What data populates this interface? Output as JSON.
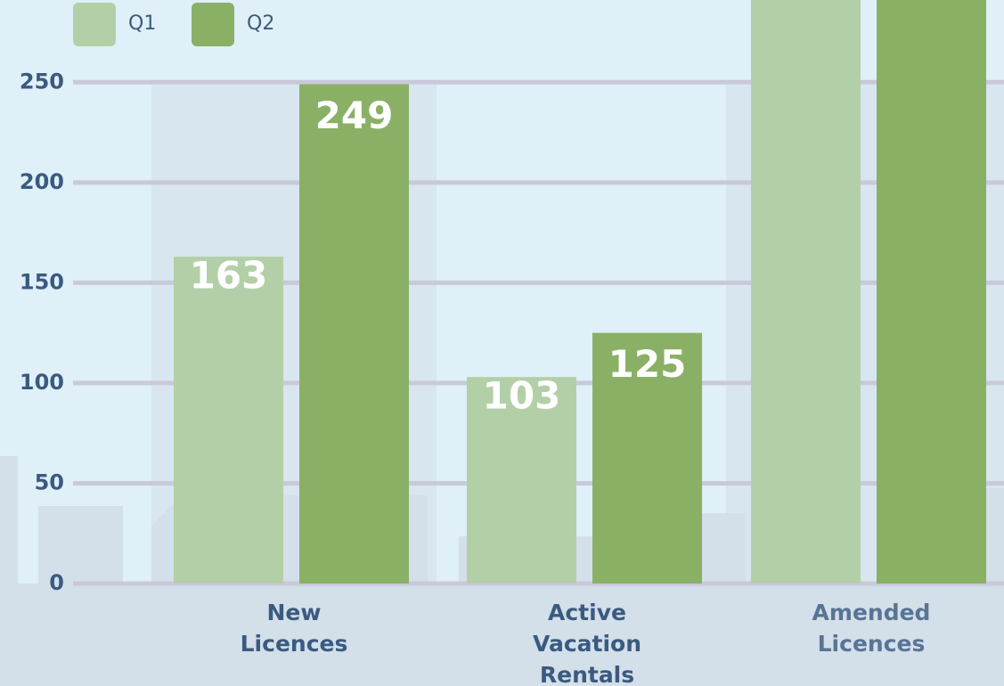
{
  "chart_data": {
    "type": "bar",
    "categories": [
      "New Licences",
      "Active Vacation Rentals",
      "Amended Licences"
    ],
    "series": [
      {
        "name": "Q1",
        "color": "#b3cfa8",
        "values": [
          163,
          103,
          300
        ]
      },
      {
        "name": "Q2",
        "color": "#8ab066",
        "values": [
          249,
          125,
          300
        ]
      }
    ],
    "ylim": [
      0,
      291
    ],
    "yticks": [
      0,
      50,
      100,
      150,
      200,
      250
    ],
    "grid": true,
    "legend": "top-left"
  }
}
